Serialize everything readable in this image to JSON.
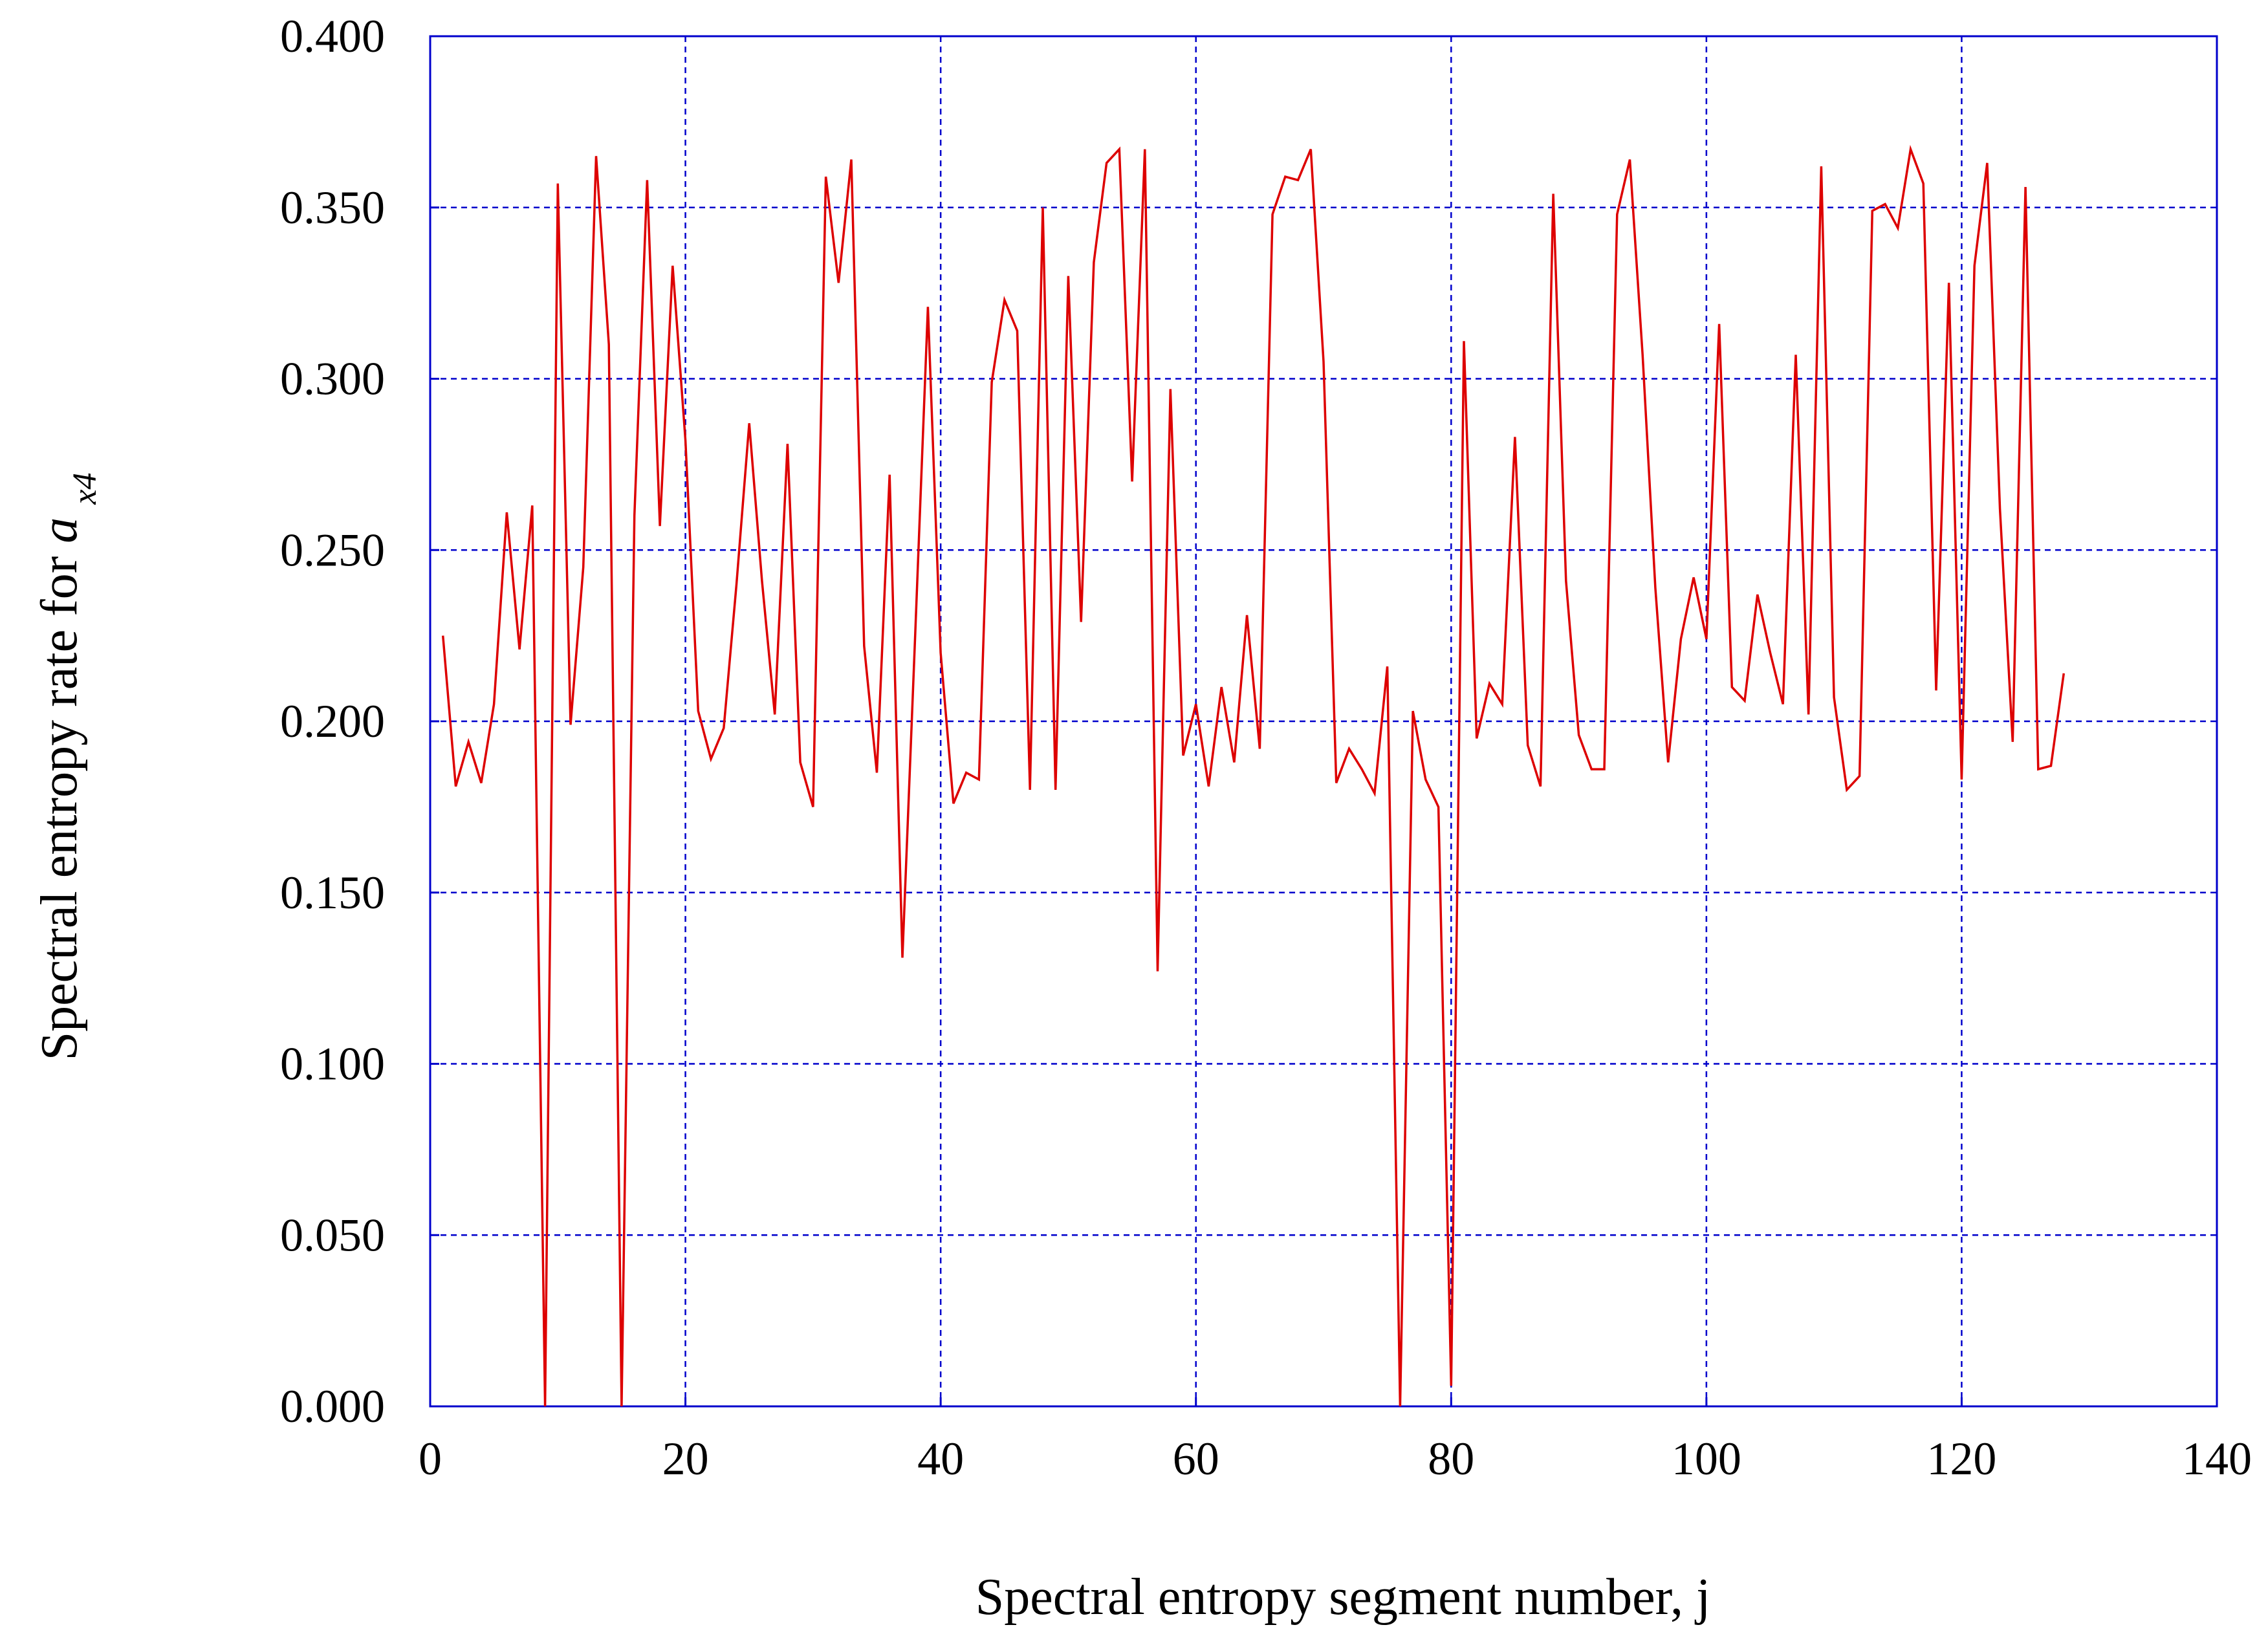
{
  "chart_data": {
    "type": "line",
    "xlabel": "Spectral entropy segment number, j",
    "ylabel": {
      "main": "Spectral entropy rate for ",
      "symbol": "a",
      "subscript": "x4"
    },
    "xlim": [
      0,
      140
    ],
    "ylim": [
      0,
      0.4
    ],
    "x_ticks": [
      0,
      20,
      40,
      60,
      80,
      100,
      120,
      140
    ],
    "x_tick_labels": [
      "0",
      "20",
      "40",
      "60",
      "80",
      "100",
      "120",
      "140"
    ],
    "y_ticks": [
      0,
      0.05,
      0.1,
      0.15,
      0.2,
      0.25,
      0.3,
      0.35,
      0.4
    ],
    "y_tick_labels": [
      "0.000",
      "0.050",
      "0.100",
      "0.150",
      "0.200",
      "0.250",
      "0.300",
      "0.350",
      "0.400"
    ],
    "grid": true,
    "legend": "none",
    "colors": {
      "series": "#dd0000",
      "grid": "#0000cc",
      "frame": "#0000cc"
    },
    "series": [
      {
        "x": [
          1,
          2,
          3,
          4,
          5,
          6,
          7,
          8,
          9,
          10,
          11,
          12,
          13,
          14,
          15,
          16,
          17,
          18,
          19,
          20,
          21,
          22,
          23,
          24,
          25,
          26,
          27,
          28,
          29,
          30,
          31,
          32,
          33,
          34,
          35,
          36,
          37,
          38,
          39,
          40,
          41,
          42,
          43,
          44,
          45,
          46,
          47,
          48,
          49,
          50,
          51,
          52,
          53,
          54,
          55,
          56,
          57,
          58,
          59,
          60,
          61,
          62,
          63,
          64,
          65,
          66,
          67,
          68,
          69,
          70,
          71,
          72,
          73,
          74,
          75,
          76,
          77,
          78,
          79,
          80,
          81,
          82,
          83,
          84,
          85,
          86,
          87,
          88,
          89,
          90,
          91,
          92,
          93,
          94,
          95,
          96,
          97,
          98,
          99,
          100,
          101,
          102,
          103,
          104,
          105,
          106,
          107,
          108,
          109,
          110,
          111,
          112,
          113,
          114,
          115,
          116,
          117,
          118,
          119,
          120,
          121,
          122,
          123,
          124,
          125,
          126,
          127,
          128
        ],
        "y": [
          0.225,
          0.181,
          0.194,
          0.182,
          0.205,
          0.261,
          0.221,
          0.263,
          0.0,
          0.357,
          0.199,
          0.245,
          0.365,
          0.31,
          0.0,
          0.26,
          0.358,
          0.257,
          0.333,
          0.282,
          0.203,
          0.189,
          0.198,
          0.24,
          0.287,
          0.241,
          0.202,
          0.281,
          0.188,
          0.175,
          0.359,
          0.328,
          0.364,
          0.222,
          0.185,
          0.272,
          0.131,
          0.225,
          0.321,
          0.22,
          0.176,
          0.185,
          0.183,
          0.299,
          0.323,
          0.314,
          0.18,
          0.35,
          0.18,
          0.33,
          0.229,
          0.334,
          0.363,
          0.367,
          0.27,
          0.367,
          0.127,
          0.297,
          0.19,
          0.205,
          0.181,
          0.21,
          0.188,
          0.231,
          0.192,
          0.348,
          0.359,
          0.358,
          0.367,
          0.305,
          0.182,
          0.192,
          0.186,
          0.179,
          0.216,
          0.0,
          0.203,
          0.183,
          0.175,
          0.006,
          0.311,
          0.195,
          0.211,
          0.205,
          0.283,
          0.193,
          0.181,
          0.354,
          0.241,
          0.196,
          0.186,
          0.186,
          0.348,
          0.364,
          0.307,
          0.239,
          0.188,
          0.224,
          0.242,
          0.224,
          0.316,
          0.21,
          0.206,
          0.237,
          0.22,
          0.205,
          0.307,
          0.202,
          0.362,
          0.207,
          0.18,
          0.184,
          0.349,
          0.351,
          0.344,
          0.367,
          0.357,
          0.209,
          0.328,
          0.183,
          0.333,
          0.363,
          0.262,
          0.194,
          0.356,
          0.186,
          0.187,
          0.214
        ]
      }
    ]
  }
}
